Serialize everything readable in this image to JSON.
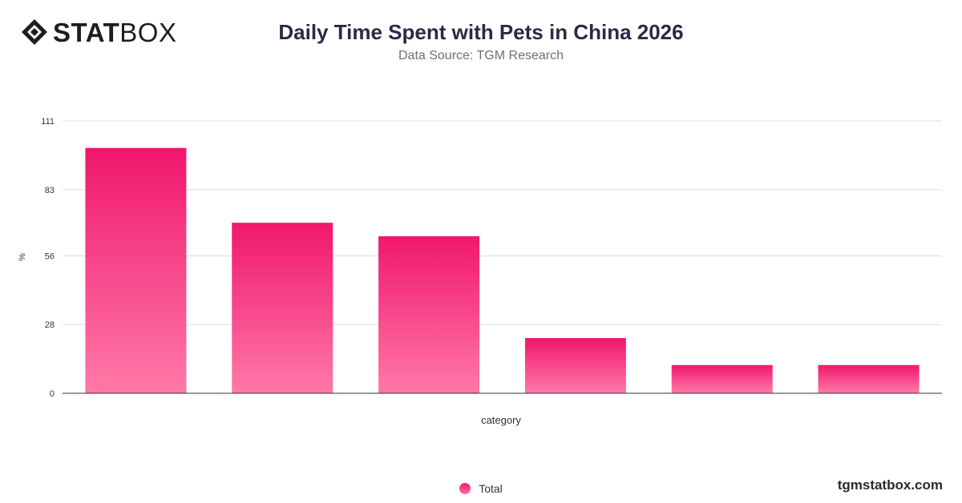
{
  "brand": {
    "logo_bold": "STAT",
    "logo_light": "BOX",
    "footer": "tgmstatbox.com"
  },
  "chart_data": {
    "type": "bar",
    "title": "Daily Time Spent with Pets in China 2026",
    "subtitle": "Data Source: TGM Research",
    "xlabel": "category",
    "ylabel": "%",
    "ylim": [
      0,
      111
    ],
    "yticks": [
      "0",
      "28",
      "56",
      "83",
      "111"
    ],
    "categories": [
      "",
      "",
      "",
      "",
      "",
      ""
    ],
    "series": [
      {
        "name": "Total",
        "values": [
          100,
          69.5,
          64,
          22.5,
          11.5,
          11.5
        ]
      }
    ],
    "grid": true,
    "legend_position": "bottom-center",
    "colors": {
      "bar_top": "#f0176d",
      "bar_bottom": "#ff79a8",
      "grid": "#dddddd",
      "axis": "#333333"
    }
  }
}
